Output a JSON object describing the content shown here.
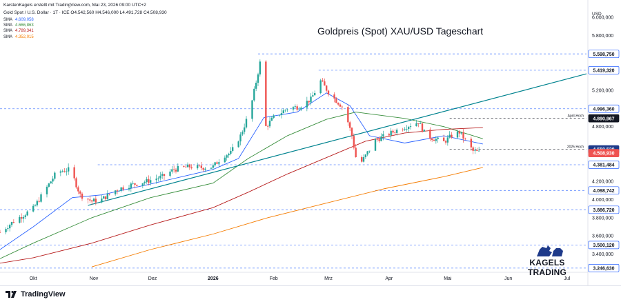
{
  "header": {
    "credit": "KarstenKagels erstellt mit TradingView.com, Mai 23, 2026 09:00 UTC+2",
    "symbol_line": "Gold Spot / U.S. Dollar · 1T · ICE  O4.542,560 H4.546,000 L4.491,728 C4.508,930",
    "currency": "USD"
  },
  "footer": {
    "brand": "TradingView"
  },
  "watermark": {
    "text": "KAGELS TRADING"
  },
  "colors": {
    "up": "#26a69a",
    "down": "#ef5350",
    "sma1": "#2962ff",
    "sma2": "#388e3c",
    "sma3": "#b71c1c",
    "sma4": "#f57c00",
    "trendline": "#00838f",
    "level": "#2962ff"
  },
  "chart_data": {
    "type": "candlestick",
    "title": "Goldpreis (Spot) XAU/USD Tageschart",
    "y_axis": {
      "ticks": [
        "6.000,000",
        "5.800,000",
        "5.600,000",
        "5.200,000",
        "4.800,000",
        "4.200,000",
        "4.000,000",
        "3.800,000",
        "3.600,000",
        "3.400,000"
      ],
      "tick_values": [
        6000,
        5800,
        5600,
        5200,
        4800,
        4200,
        4000,
        3800,
        3600,
        3400
      ],
      "range": [
        3200,
        6100
      ]
    },
    "x_axis": {
      "ticks": [
        "Okt",
        "Nov",
        "Dez",
        "2026",
        "Feb",
        "Mrz",
        "Apr",
        "Mai",
        "Jun",
        "Jul"
      ],
      "tick_days": [
        0,
        31,
        61,
        92,
        123,
        151,
        182,
        212,
        243,
        273
      ],
      "range_days": [
        -17,
        283
      ]
    },
    "legend": [
      {
        "name": "SMA",
        "value": "4.609,058",
        "color": "#2962ff"
      },
      {
        "name": "SMA",
        "value": "4.666,863",
        "color": "#388e3c"
      },
      {
        "name": "SMA",
        "value": "4.789,341",
        "color": "#b71c1c"
      },
      {
        "name": "SMA",
        "value": "4.352,015",
        "color": "#f57c00"
      }
    ],
    "price_levels": [
      {
        "value": 5598.75,
        "label": "5.598,750",
        "color": "#2962ff",
        "from_day": 115
      },
      {
        "value": 5419.32,
        "label": "5.419,320",
        "color": "#2962ff",
        "from_day": 146
      },
      {
        "value": 4996.36,
        "label": "4.996,360",
        "color": "#2962ff",
        "from_day": -17
      },
      {
        "value": 4890.967,
        "label": "4.890,967",
        "color": "#131722",
        "from_day": 213,
        "annotation": "April-Hoch"
      },
      {
        "value": 4550.52,
        "label": "4.550,520",
        "color": "#131722",
        "from_day": 213,
        "annotation": "2025 Hoch"
      },
      {
        "value": 4381.484,
        "label": "4.381,484",
        "color": "#2962ff",
        "from_day": 33
      },
      {
        "value": 4098.742,
        "label": "4.098,742",
        "color": "#2962ff",
        "from_day": 175
      },
      {
        "value": 3886.72,
        "label": "3.886,720",
        "color": "#2962ff",
        "from_day": -17
      },
      {
        "value": 3500.12,
        "label": "3.500,120",
        "color": "#2962ff",
        "from_day": -17
      },
      {
        "value": 3246.63,
        "label": "3.246,630",
        "color": "#2962ff",
        "from_day": -17
      }
    ],
    "current_price": {
      "value": 4508.93,
      "label": "4.508,930"
    },
    "trendline": {
      "from": {
        "day": 28,
        "price": 3935
      },
      "to": {
        "day": 283,
        "price": 5380
      }
    },
    "candle_path": [
      [
        -17,
        3640
      ],
      [
        -10,
        3760
      ],
      [
        0,
        3900
      ],
      [
        12,
        4300
      ],
      [
        19,
        4330
      ],
      [
        24,
        4050
      ],
      [
        30,
        3980
      ],
      [
        35,
        4000
      ],
      [
        42,
        4100
      ],
      [
        48,
        4150
      ],
      [
        58,
        4200
      ],
      [
        66,
        4250
      ],
      [
        72,
        4330
      ],
      [
        80,
        4360
      ],
      [
        86,
        4350
      ],
      [
        92,
        4360
      ],
      [
        97,
        4480
      ],
      [
        101,
        4510
      ],
      [
        106,
        4700
      ],
      [
        111,
        4980
      ],
      [
        116,
        5500
      ],
      [
        118,
        5400
      ],
      [
        119,
        4800
      ],
      [
        123,
        4900
      ],
      [
        130,
        5000
      ],
      [
        136,
        5020
      ],
      [
        142,
        5100
      ],
      [
        147,
        5300
      ],
      [
        152,
        5150
      ],
      [
        159,
        5000
      ],
      [
        163,
        4700
      ],
      [
        166,
        4350
      ],
      [
        170,
        4480
      ],
      [
        175,
        4650
      ],
      [
        182,
        4720
      ],
      [
        188,
        4780
      ],
      [
        193,
        4820
      ],
      [
        197,
        4850
      ],
      [
        201,
        4700
      ],
      [
        206,
        4660
      ],
      [
        210,
        4630
      ],
      [
        214,
        4700
      ],
      [
        218,
        4740
      ],
      [
        222,
        4620
      ],
      [
        225,
        4530
      ],
      [
        230,
        4508.93
      ]
    ],
    "sma_paths": [
      [
        [
          -17,
          3450
        ],
        [
          0,
          3700
        ],
        [
          20,
          4020
        ],
        [
          35,
          4050
        ],
        [
          60,
          4170
        ],
        [
          92,
          4330
        ],
        [
          105,
          4450
        ],
        [
          118,
          4900
        ],
        [
          135,
          4960
        ],
        [
          150,
          5170
        ],
        [
          162,
          5030
        ],
        [
          172,
          4700
        ],
        [
          190,
          4620
        ],
        [
          210,
          4700
        ],
        [
          230,
          4609
        ]
      ],
      [
        [
          -17,
          3350
        ],
        [
          0,
          3520
        ],
        [
          30,
          3800
        ],
        [
          60,
          4020
        ],
        [
          92,
          4180
        ],
        [
          110,
          4450
        ],
        [
          130,
          4700
        ],
        [
          150,
          4880
        ],
        [
          165,
          4960
        ],
        [
          190,
          4890
        ],
        [
          210,
          4800
        ],
        [
          230,
          4667
        ]
      ],
      [
        [
          -17,
          3300
        ],
        [
          0,
          3360
        ],
        [
          30,
          3520
        ],
        [
          60,
          3720
        ],
        [
          92,
          3910
        ],
        [
          110,
          4080
        ],
        [
          130,
          4280
        ],
        [
          150,
          4460
        ],
        [
          170,
          4640
        ],
        [
          190,
          4730
        ],
        [
          210,
          4770
        ],
        [
          230,
          4789
        ]
      ],
      [
        [
          30,
          3260
        ],
        [
          60,
          3450
        ],
        [
          92,
          3620
        ],
        [
          120,
          3800
        ],
        [
          150,
          3960
        ],
        [
          180,
          4120
        ],
        [
          210,
          4250
        ],
        [
          230,
          4352
        ]
      ]
    ],
    "grid": false
  }
}
